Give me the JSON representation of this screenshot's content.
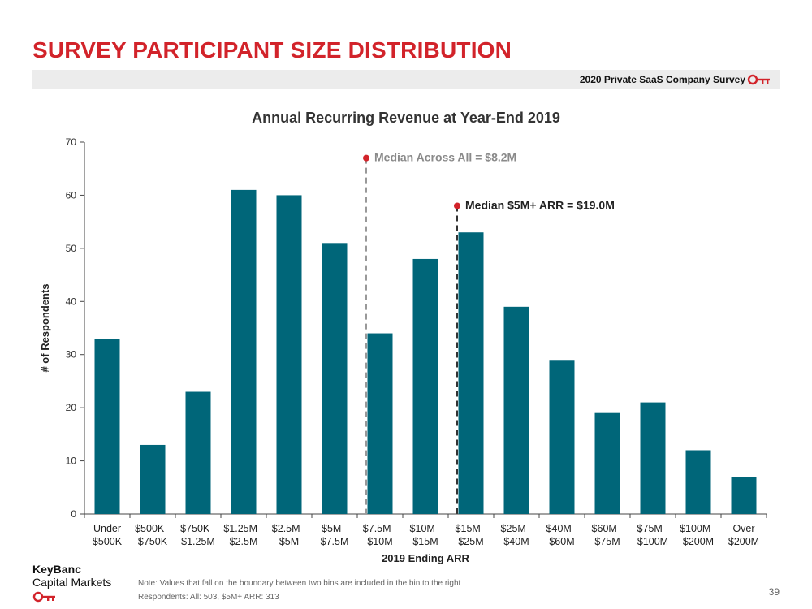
{
  "header": {
    "title": "SURVEY PARTICIPANT SIZE DISTRIBUTION",
    "banner_text": "2020 Private SaaS Company Survey"
  },
  "footer": {
    "logo_line1": "KeyBanc",
    "logo_line2": "Capital Markets",
    "note_line1": "Note: Values that fall on the boundary between two bins are included in the bin to the right",
    "note_line2": "Respondents: All: 503, $5M+ ARR: 313",
    "page_number": "39"
  },
  "colors": {
    "brand_red": "#d2232a",
    "bar": "#006679",
    "median_all_line": "#999999",
    "median_5m_line": "#333333"
  },
  "chart_data": {
    "type": "bar",
    "title": "Annual Recurring Revenue at Year-End 2019",
    "xlabel": "2019 Ending ARR",
    "ylabel": "# of Respondents",
    "ylim": [
      0,
      70
    ],
    "yticks": [
      0,
      10,
      20,
      30,
      40,
      50,
      60,
      70
    ],
    "grid": false,
    "categories": [
      [
        "Under",
        "$500K"
      ],
      [
        "$500K -",
        "$750K"
      ],
      [
        "$750K -",
        "$1.25M"
      ],
      [
        "$1.25M -",
        "$2.5M"
      ],
      [
        "$2.5M -",
        "$5M"
      ],
      [
        "$5M -",
        "$7.5M"
      ],
      [
        "$7.5M -",
        "$10M"
      ],
      [
        "$10M -",
        "$15M"
      ],
      [
        "$15M -",
        "$25M"
      ],
      [
        "$25M -",
        "$40M"
      ],
      [
        "$40M -",
        "$60M"
      ],
      [
        "$60M -",
        "$75M"
      ],
      [
        "$75M -",
        "$100M"
      ],
      [
        "$100M -",
        "$200M"
      ],
      [
        "Over",
        "$200M"
      ]
    ],
    "values": [
      33,
      13,
      23,
      61,
      60,
      51,
      34,
      48,
      53,
      39,
      29,
      19,
      21,
      12,
      7
    ],
    "annotations": [
      {
        "label": "Median Across All = $8.2M",
        "category_index": 6,
        "y": 67,
        "style": "gray"
      },
      {
        "label": "Median $5M+ ARR = $19.0M",
        "category_index": 8,
        "y": 58,
        "style": "dark"
      }
    ]
  }
}
